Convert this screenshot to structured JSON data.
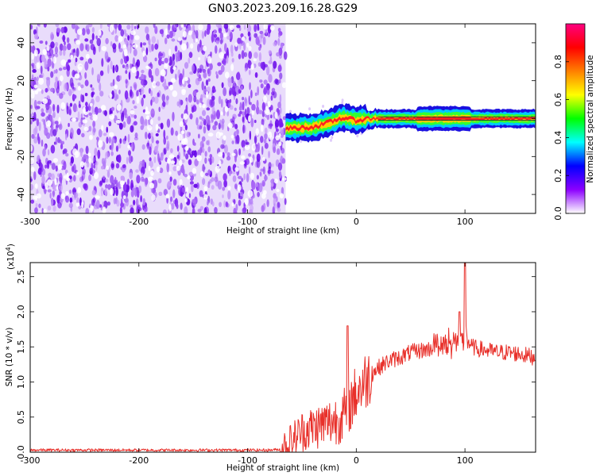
{
  "chart_data": [
    {
      "type": "heatmap",
      "title": "GN03.2023.209.16.28.G29",
      "xlabel": "Height of straight line (km)",
      "ylabel": "Frequency (Hz)",
      "xlim": [
        -300,
        165
      ],
      "ylim": [
        -50,
        50
      ],
      "x_ticks": [
        "-300",
        "-200",
        "-100",
        "0",
        "100"
      ],
      "y_ticks": [
        "-40",
        "-20",
        "0",
        "20",
        "40"
      ],
      "noise_region_x": [
        -300,
        -65
      ],
      "ridge_x": [
        -65,
        -55,
        -40,
        -30,
        -20,
        -15,
        -10,
        -5,
        0,
        5,
        10,
        20,
        40,
        60,
        80,
        100,
        120,
        140,
        165
      ],
      "ridge_freq": [
        -5,
        -5,
        -4.5,
        -3,
        -1,
        0,
        0.5,
        -0.5,
        -1,
        -0.5,
        0,
        0,
        0,
        0,
        0,
        0,
        0,
        0,
        0
      ],
      "colorbar": {
        "label": "Normalized spectral amplitude",
        "range": [
          0,
          1
        ],
        "ticks": [
          "0.0",
          "0.2",
          "0.4",
          "0.6",
          "0.8"
        ],
        "colors": [
          "#ffffff",
          "#8c00ff",
          "#0000ff",
          "#00ffff",
          "#00ff00",
          "#ffff00",
          "#ff8000",
          "#ff0000",
          "#ff0080"
        ]
      }
    },
    {
      "type": "line",
      "title": "",
      "xlabel": "Height of straight line (km)",
      "ylabel": "SNR (10 * v/v)",
      "y_scale_note": "(x10",
      "y_scale_exp": "4",
      "y_scale_close": ")",
      "xlim": [
        -300,
        165
      ],
      "ylim": [
        0,
        2.7
      ],
      "x_ticks": [
        "-300",
        "-200",
        "-100",
        "0",
        "100"
      ],
      "y_ticks": [
        "0.0",
        "0.5",
        "1.0",
        "1.5",
        "2.0",
        "2.5"
      ],
      "color": "#e8302a",
      "series": [
        {
          "x": [
            -300,
            -250,
            -200,
            -150,
            -100,
            -80,
            -70,
            -60,
            -50,
            -40,
            -30,
            -20,
            -10,
            0,
            10,
            20,
            30,
            40,
            50,
            60,
            70,
            80,
            90,
            100,
            110,
            120,
            130,
            140,
            150,
            165
          ],
          "values": [
            0.03,
            0.03,
            0.03,
            0.03,
            0.03,
            0.03,
            0.04,
            0.15,
            0.3,
            0.35,
            0.4,
            0.45,
            0.55,
            0.85,
            1.05,
            1.2,
            1.3,
            1.35,
            1.42,
            1.45,
            1.48,
            1.5,
            1.52,
            1.55,
            1.48,
            1.45,
            1.42,
            1.42,
            1.4,
            1.35
          ]
        }
      ],
      "peaks": [
        {
          "x": -8,
          "y": 1.8
        },
        {
          "x": 95,
          "y": 2.0
        },
        {
          "x": 100,
          "y": 2.7
        }
      ]
    }
  ]
}
